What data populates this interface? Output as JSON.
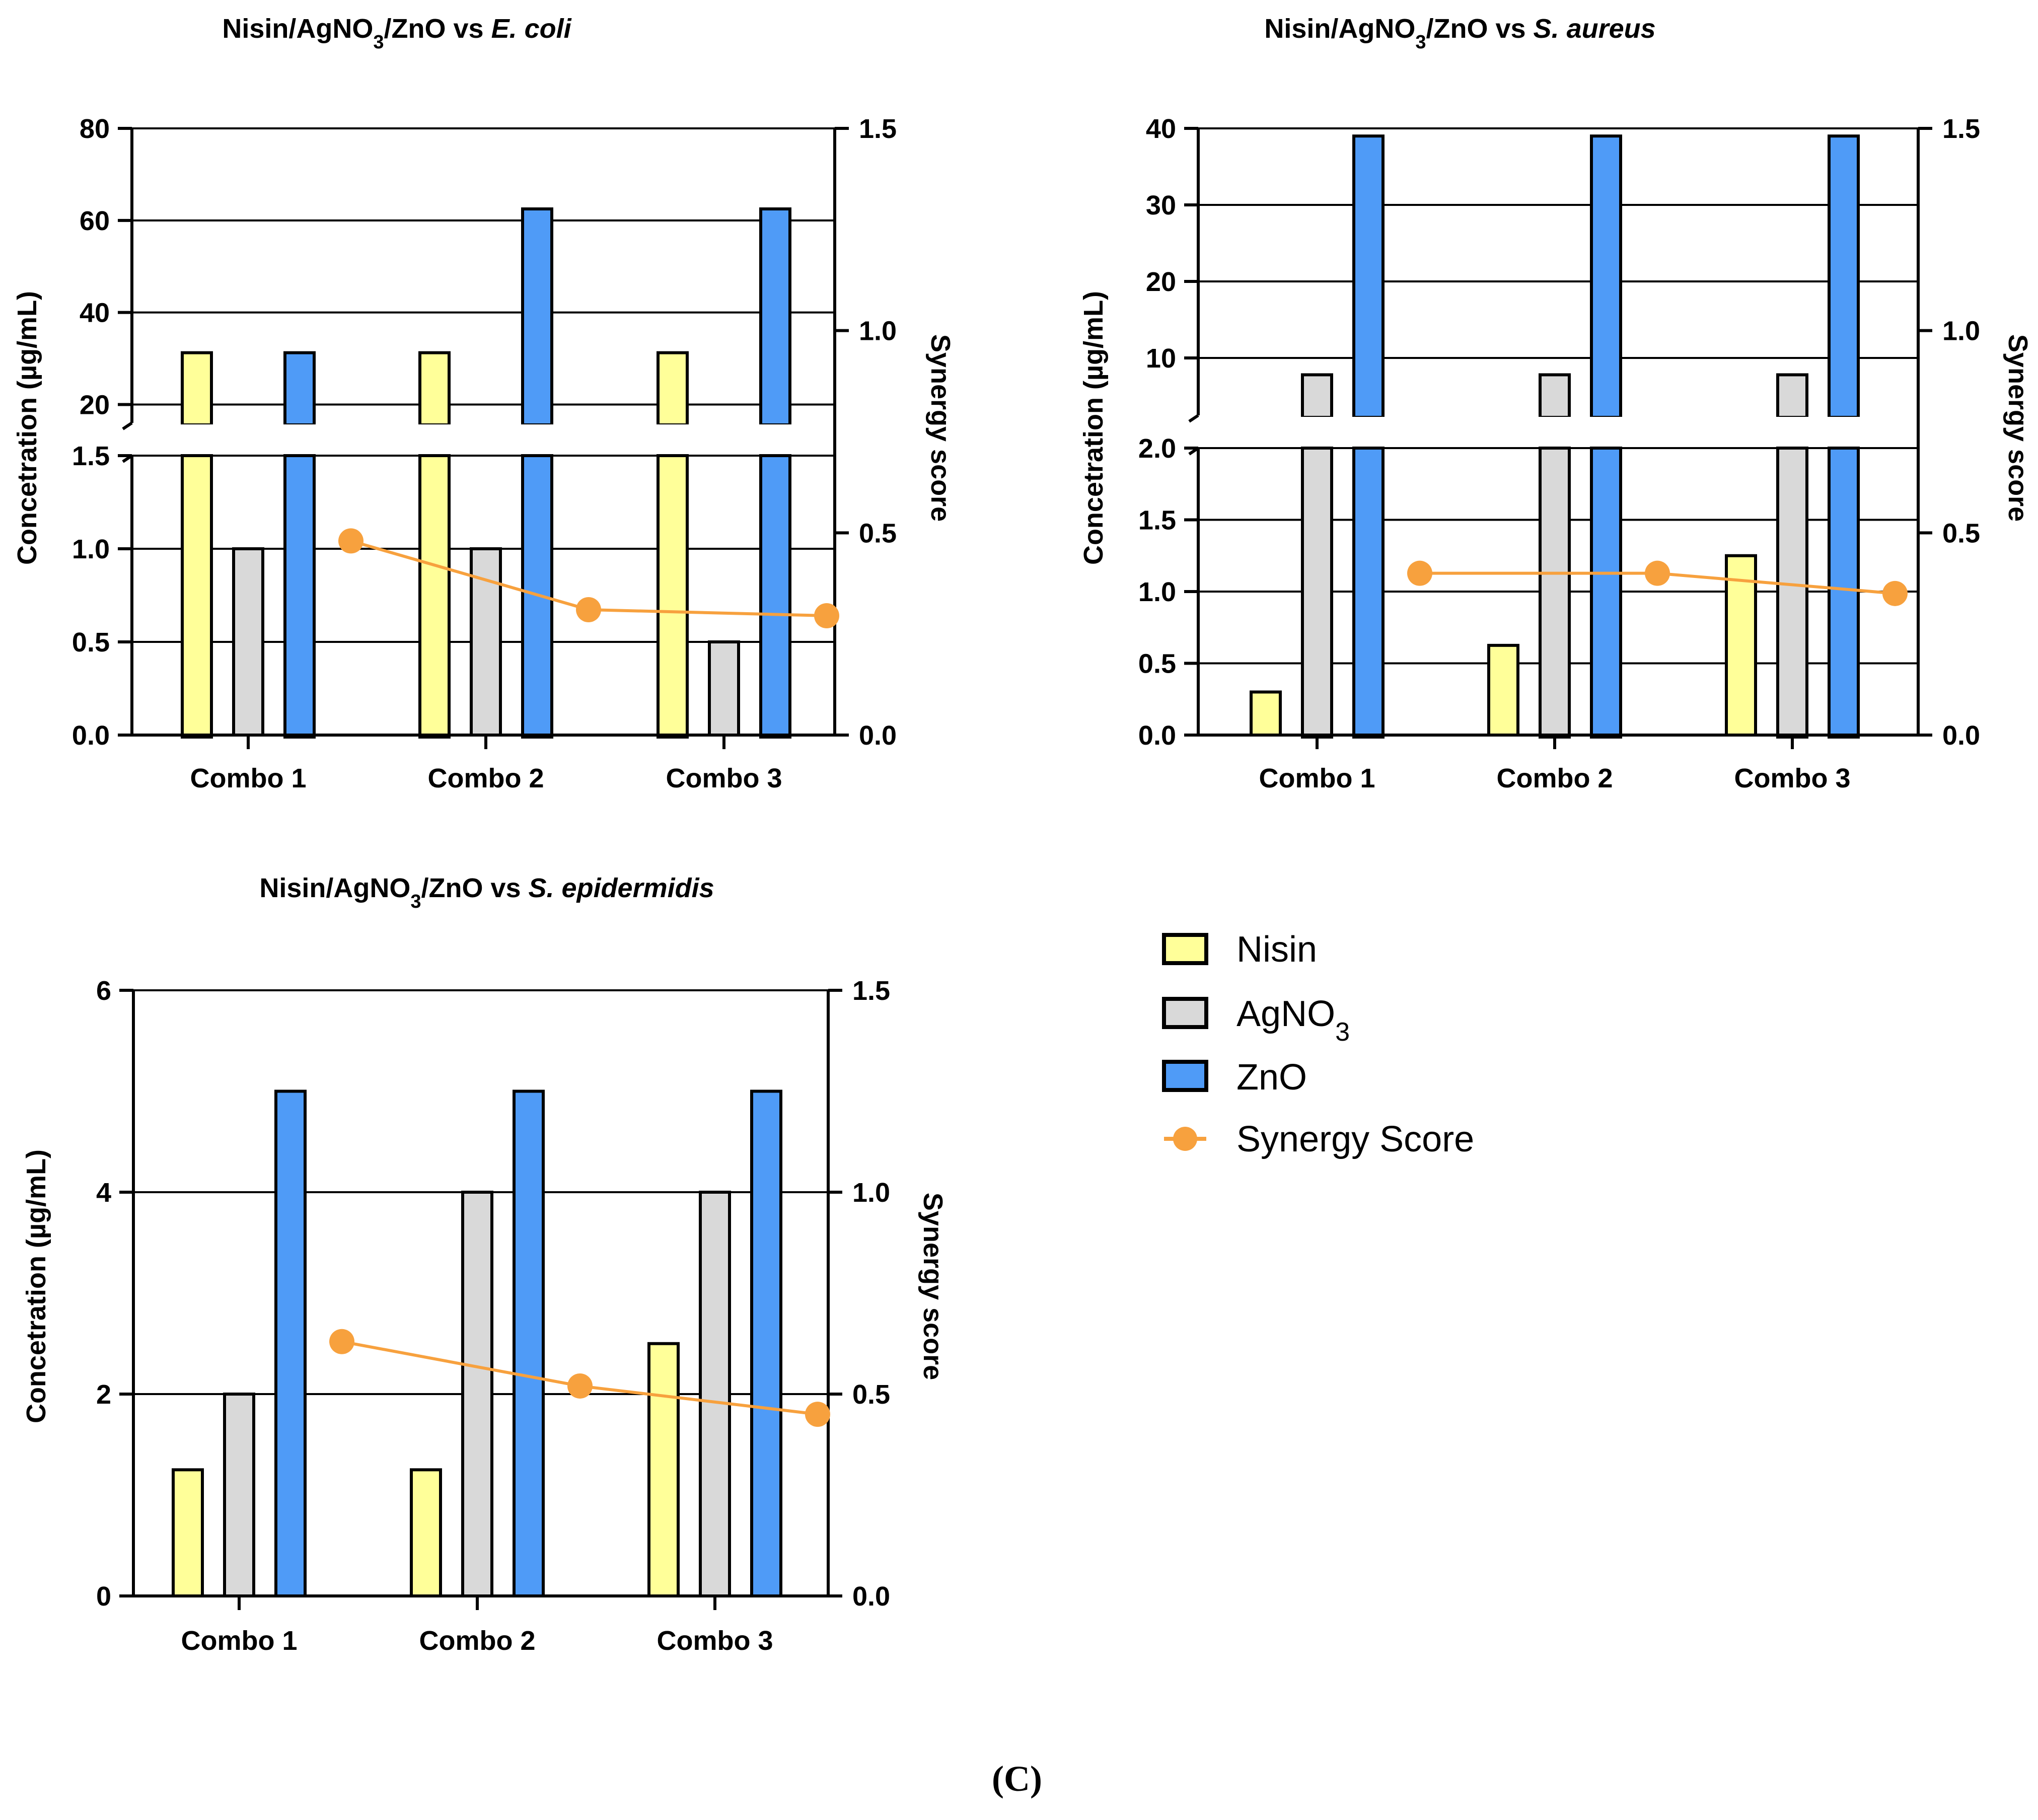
{
  "panel_label": "(C)",
  "colors": {
    "nisin": "#ffff99",
    "agno3": "#d9d9d9",
    "zno": "#4f9bf7",
    "synergy": "#f7a13e",
    "axis": "#000000"
  },
  "legend": {
    "items": [
      {
        "label": "Nisin",
        "kind": "bar",
        "color": "#ffff99"
      },
      {
        "label": "AgNO3",
        "kind": "bar",
        "color": "#d9d9d9"
      },
      {
        "label": "ZnO",
        "kind": "bar",
        "color": "#4f9bf7"
      },
      {
        "label": "Synergy Score",
        "kind": "line",
        "color": "#f7a13e"
      }
    ]
  },
  "chart_data": [
    {
      "type": "bar",
      "title": "Nisin/AgNO3/ZnO vs E. coli",
      "title_prefix": "Nisin/AgNO",
      "title_sub": "3",
      "title_mid": "/ZnO vs ",
      "title_organism": "E. coli",
      "categories": [
        "Combo 1",
        "Combo 2",
        "Combo 3"
      ],
      "ylabel": "Concetration (µg/mL)",
      "y2label": "Synergy score",
      "y_broken": true,
      "y_lower": {
        "range": [
          0,
          1.5
        ],
        "ticks": [
          "0.0",
          "0.5",
          "1.0",
          "1.5"
        ]
      },
      "y_upper": {
        "range": [
          16,
          80
        ],
        "ticks": [
          "20",
          "40",
          "60",
          "80"
        ]
      },
      "y2": {
        "range": [
          0,
          1.5
        ],
        "ticks": [
          "0.0",
          "0.5",
          "1.0",
          "1.5"
        ]
      },
      "series": [
        {
          "name": "Nisin",
          "values": [
            31.25,
            31.25,
            31.25
          ]
        },
        {
          "name": "AgNO3",
          "values": [
            1,
            1,
            0.5
          ]
        },
        {
          "name": "ZnO",
          "values": [
            31.25,
            62.5,
            62.5
          ]
        }
      ],
      "synergy": [
        0.48,
        0.31,
        0.295
      ],
      "grid": true
    },
    {
      "type": "bar",
      "title": "Nisin/AgNO3/ZnO vs S. aureus",
      "title_prefix": "Nisin/AgNO",
      "title_sub": "3",
      "title_mid": "/ZnO vs ",
      "title_organism": "S. aureus",
      "categories": [
        "Combo 1",
        "Combo 2",
        "Combo 3"
      ],
      "ylabel": "Concetration (µg/mL)",
      "y2label": "Synergy score",
      "y_broken": true,
      "y_lower": {
        "range": [
          0,
          2.0
        ],
        "ticks": [
          "0.0",
          "0.5",
          "1.0",
          "1.5",
          "2.0"
        ]
      },
      "y_upper": {
        "range": [
          2.5,
          40
        ],
        "ticks": [
          "10",
          "20",
          "30",
          "40"
        ]
      },
      "y2": {
        "range": [
          0,
          1.5
        ],
        "ticks": [
          "0.0",
          "0.5",
          "1.0",
          "1.5"
        ]
      },
      "series": [
        {
          "name": "Nisin",
          "values": [
            0.3,
            0.625,
            1.25
          ]
        },
        {
          "name": "AgNO3",
          "values": [
            7.8,
            7.8,
            7.8
          ]
        },
        {
          "name": "ZnO",
          "values": [
            39,
            39,
            39
          ]
        }
      ],
      "synergy": [
        0.4,
        0.4,
        0.35
      ],
      "grid": true
    },
    {
      "type": "bar",
      "title": "Nisin/AgNO3/ZnO vs S. epidermidis",
      "title_prefix": "Nisin/AgNO",
      "title_sub": "3",
      "title_mid": "/ZnO vs ",
      "title_organism": "S. epidermidis",
      "categories": [
        "Combo 1",
        "Combo 2",
        "Combo 3"
      ],
      "ylabel": "Concetration (µg/mL)",
      "y2label": "Synergy score",
      "y_broken": false,
      "y_lower": {
        "range": [
          0,
          6
        ],
        "ticks": [
          "0",
          "2",
          "4",
          "6"
        ]
      },
      "y2": {
        "range": [
          0,
          1.5
        ],
        "ticks": [
          "0.0",
          "0.5",
          "1.0",
          "1.5"
        ]
      },
      "series": [
        {
          "name": "Nisin",
          "values": [
            1.25,
            1.25,
            2.5
          ]
        },
        {
          "name": "AgNO3",
          "values": [
            2,
            4,
            4
          ]
        },
        {
          "name": "ZnO",
          "values": [
            5,
            5,
            5
          ]
        }
      ],
      "synergy": [
        0.63,
        0.52,
        0.45
      ],
      "grid": true
    }
  ]
}
